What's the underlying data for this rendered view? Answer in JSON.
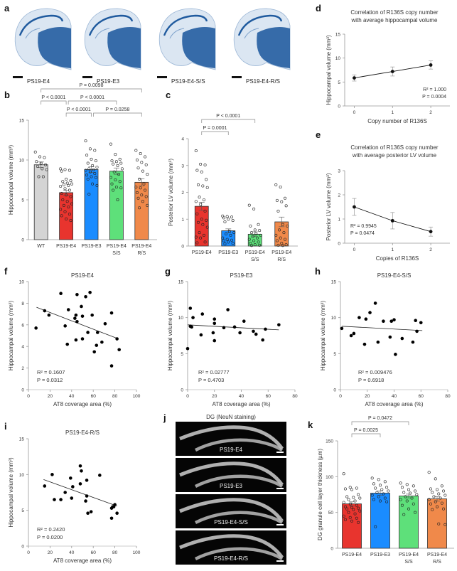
{
  "figure": {
    "panels": {
      "a": {
        "letter": "a",
        "images": [
          {
            "label": "PS19-E4",
            "stain_color": "#1f5a9e"
          },
          {
            "label": "PS19-E3",
            "stain_color": "#1f5a9e"
          },
          {
            "label": "PS19-E4-S/S",
            "stain_color": "#1f5a9e"
          },
          {
            "label": "PS19-E4-R/S",
            "stain_color": "#1f5a9e"
          }
        ]
      },
      "b": {
        "letter": "b"
      },
      "c": {
        "letter": "c"
      },
      "d": {
        "letter": "d",
        "title_line1": "Correlation of R136S copy number",
        "title_line2": "with average hippocampal volume"
      },
      "e": {
        "letter": "e",
        "title_line1": "Correlation of R136S copy number",
        "title_line2": "with average posterior LV volume"
      },
      "f": {
        "letter": "f"
      },
      "g": {
        "letter": "g"
      },
      "h": {
        "letter": "h"
      },
      "i": {
        "letter": "i"
      },
      "j": {
        "letter": "j",
        "title": "DG (NeuN staining)",
        "images": [
          {
            "label": "PS19-E4"
          },
          {
            "label": "PS19-E3"
          },
          {
            "label": "PS19-E4-S/S"
          },
          {
            "label": "PS19-E4-R/S"
          }
        ]
      },
      "k": {
        "letter": "k"
      }
    }
  },
  "chart_data": [
    {
      "id": "b",
      "type": "bar",
      "title": "",
      "xlabel": "",
      "ylabel": "Hippocampal volume (mm³)",
      "ylim": [
        0,
        15
      ],
      "yticks": [
        0,
        5,
        10,
        15
      ],
      "categories": [
        "WT",
        "PS19-E4",
        "PS19-E3",
        "PS19-E4\nS/S",
        "PS19-E4\nR/S"
      ],
      "category_lines": [
        [
          "WT"
        ],
        [
          "PS19-E4"
        ],
        [
          "PS19-E3"
        ],
        [
          "PS19-E4",
          "S/S"
        ],
        [
          "PS19-E4",
          "R/S"
        ]
      ],
      "colors": [
        "#d4d4d4",
        "#e8342e",
        "#1a8cff",
        "#5ee07a",
        "#f0894a"
      ],
      "values": [
        9.4,
        5.9,
        8.8,
        8.6,
        7.2
      ],
      "sem": [
        0.35,
        0.3,
        0.35,
        0.4,
        0.45
      ],
      "points": [
        [
          11.0,
          10.4,
          10.3,
          9.8,
          9.6,
          9.4,
          9.2,
          8.9,
          8.8,
          7.9,
          7.9
        ],
        [
          8.9,
          8.8,
          8.7,
          8.6,
          7.6,
          7.4,
          7.3,
          7.1,
          7.0,
          6.9,
          6.8,
          6.7,
          6.4,
          6.2,
          5.8,
          5.6,
          5.4,
          5.0,
          4.8,
          4.5,
          4.3,
          4.1,
          3.8,
          3.5,
          3.2,
          3.0,
          2.6,
          2.4
        ],
        [
          12.4,
          11.4,
          11.2,
          10.6,
          10.1,
          9.9,
          9.6,
          9.3,
          9.1,
          8.9,
          8.8,
          8.7,
          8.5,
          8.3,
          8.1,
          7.9,
          7.8,
          7.6,
          7.0,
          6.8,
          5.7
        ],
        [
          12.0,
          10.7,
          10.1,
          9.9,
          9.8,
          9.6,
          9.5,
          9.3,
          8.9,
          8.5,
          8.2,
          7.8,
          7.5,
          7.3,
          7.0,
          6.6,
          6.5,
          6.2,
          5.0
        ],
        [
          11.2,
          10.8,
          10.4,
          10.0,
          9.7,
          9.4,
          9.0,
          8.6,
          8.2,
          7.6,
          7.0,
          6.6,
          6.5,
          6.2,
          5.9,
          5.6,
          5.4,
          5.2,
          4.8,
          4.3,
          4.0
        ]
      ],
      "comparisons": [
        {
          "from": 0,
          "to": 4,
          "label": "P = 0.0098",
          "level": 3
        },
        {
          "from": 0,
          "to": 1,
          "label": "P < 0.0001",
          "level": 2
        },
        {
          "from": 1,
          "to": 3,
          "label": "P < 0.0001",
          "level": 2,
          "offset": true
        },
        {
          "from": 1,
          "to": 2,
          "label": "P < 0.0001",
          "level": 1
        },
        {
          "from": 2,
          "to": 4,
          "label": "P = 0.0258",
          "level": 1,
          "offset": true
        }
      ]
    },
    {
      "id": "c",
      "type": "bar",
      "title": "",
      "xlabel": "",
      "ylabel": "Posterior LV volume (mm³)",
      "ylim": [
        0,
        4
      ],
      "yticks": [
        0,
        1,
        2,
        3,
        4
      ],
      "categories": [
        "PS19-E4",
        "PS19-E3",
        "PS19-E4\nS/S",
        "PS19-E4\nR/S"
      ],
      "category_lines": [
        [
          "PS19-E4"
        ],
        [
          "PS19-E3"
        ],
        [
          "PS19-E4",
          "S/S"
        ],
        [
          "PS19-E4",
          "R/S"
        ]
      ],
      "colors": [
        "#e8342e",
        "#1a8cff",
        "#5ee07a",
        "#f0894a"
      ],
      "values": [
        1.48,
        0.57,
        0.44,
        0.9
      ],
      "sem": [
        0.15,
        0.07,
        0.09,
        0.18
      ],
      "points": [
        [
          3.55,
          3.05,
          3.02,
          2.82,
          2.76,
          2.48,
          2.28,
          2.24,
          2.18,
          1.82,
          1.72,
          1.66,
          1.55,
          1.3,
          1.2,
          1.0,
          0.96,
          0.88,
          0.8,
          0.7,
          0.5,
          0.4,
          0.33,
          0.3,
          0.15,
          0.12
        ],
        [
          1.12,
          1.1,
          1.08,
          1.05,
          1.0,
          0.95,
          0.9,
          0.55,
          0.5,
          0.45,
          0.4,
          0.3,
          0.25,
          0.22,
          0.2,
          0.15,
          0.1,
          0.08
        ],
        [
          1.52,
          1.38,
          0.8,
          0.75,
          0.6,
          0.58,
          0.5,
          0.45,
          0.4,
          0.35,
          0.3,
          0.25,
          0.2,
          0.15,
          0.1,
          0.05,
          0.03,
          0.02
        ],
        [
          2.28,
          2.2,
          1.78,
          1.7,
          1.65,
          1.5,
          1.3,
          0.8,
          0.75,
          0.6,
          0.5,
          0.4,
          0.3,
          0.25,
          0.2,
          0.1,
          0.05,
          0.03,
          0.02
        ]
      ],
      "comparisons": [
        {
          "from": 0,
          "to": 2,
          "label": "P < 0.0001",
          "level": 2
        },
        {
          "from": 0,
          "to": 1,
          "label": "P = 0.0001",
          "level": 1
        }
      ]
    },
    {
      "id": "d",
      "type": "line",
      "title": "Correlation of R136S copy number with average hippocampal volume",
      "xlabel": "Copy number of R136S",
      "ylabel": "Hippocampal volume (mm³)",
      "x": [
        0,
        1,
        2
      ],
      "y": [
        5.85,
        7.2,
        8.55
      ],
      "err": [
        0.65,
        0.95,
        0.85
      ],
      "xlim": [
        -0.25,
        2.5
      ],
      "ylim": [
        0,
        15
      ],
      "xticks": [
        0,
        1,
        2
      ],
      "yticks": [
        0,
        5,
        10,
        15
      ],
      "annotation": [
        "R² = 1.000",
        "P = 0.0004"
      ]
    },
    {
      "id": "e",
      "type": "line",
      "title": "Correlation of R136S copy number with average posterior LV volume",
      "xlabel": "Copies of R136S",
      "ylabel": "Posterior LV volume (mm³)",
      "x": [
        0,
        1,
        2
      ],
      "y": [
        1.5,
        0.93,
        0.48
      ],
      "err": [
        0.35,
        0.34,
        0.19
      ],
      "xlim": [
        -0.25,
        2.5
      ],
      "ylim": [
        0,
        3
      ],
      "xticks": [
        0,
        1,
        2
      ],
      "yticks": [
        0,
        1,
        2,
        3
      ],
      "annotation": [
        "R² = 0.9945",
        "P = 0.0474"
      ]
    },
    {
      "id": "f",
      "type": "scatter",
      "title": "PS19-E4",
      "xlabel": "AT8 coverage area (%)",
      "ylabel": "Hippocampal volume (mm³)",
      "xlim": [
        0,
        100
      ],
      "ylim": [
        0,
        10
      ],
      "xticks": [
        0,
        20,
        40,
        60,
        80,
        100
      ],
      "yticks": [
        0,
        2,
        4,
        6,
        8,
        10
      ],
      "x": [
        7,
        15,
        19,
        30,
        34,
        36,
        37,
        43,
        44,
        44,
        45,
        45,
        49,
        50,
        50,
        53,
        55,
        57,
        59,
        61,
        63,
        64,
        68,
        71,
        77,
        77,
        82,
        84
      ],
      "y": [
        5.7,
        7.3,
        6.9,
        8.9,
        5.9,
        4.2,
        7.4,
        6.6,
        4.6,
        6.9,
        8.8,
        6.3,
        7.7,
        6.8,
        4.7,
        8.6,
        5.3,
        9.0,
        6.9,
        3.5,
        4.1,
        5.3,
        4.4,
        6.1,
        7.1,
        2.2,
        4.7,
        3.7
      ],
      "fit": {
        "x": [
          7.5,
          82
        ],
        "y": [
          7.62,
          4.75
        ]
      },
      "annotation": [
        "R² = 0.1607",
        "P = 0.0312"
      ]
    },
    {
      "id": "g",
      "type": "scatter",
      "title": "PS19-E3",
      "xlabel": "AT8 coverage area (%)",
      "ylabel": "Hippocampal volume (mm³)",
      "xlim": [
        0,
        80
      ],
      "ylim": [
        0,
        15
      ],
      "xticks": [
        0,
        20,
        40,
        60,
        80
      ],
      "yticks": [
        0,
        5,
        10,
        15
      ],
      "x": [
        0,
        2,
        2,
        3,
        4,
        10,
        11,
        19,
        20,
        20,
        20,
        27,
        30,
        35,
        39,
        42,
        49,
        51,
        56,
        58,
        68
      ],
      "y": [
        5.7,
        11.3,
        8.8,
        8.7,
        10.0,
        7.6,
        10.5,
        7.9,
        6.8,
        9.8,
        9.2,
        8.6,
        11.1,
        8.7,
        7.9,
        9.5,
        8.1,
        7.7,
        6.9,
        8.4,
        9.0
      ],
      "fit": {
        "x": [
          0,
          68
        ],
        "y": [
          9.0,
          8.3
        ]
      },
      "annotation": [
        "R² = 0.02777",
        "P = 0.4703"
      ]
    },
    {
      "id": "h",
      "type": "scatter",
      "title": "PS19-E4-S/S",
      "xlabel": "AT8 coverage area (%)",
      "ylabel": "Hippocampal volume (mm³)",
      "xlim": [
        0,
        80
      ],
      "ylim": [
        0,
        15
      ],
      "xticks": [
        0,
        20,
        40,
        60,
        80
      ],
      "yticks": [
        0,
        5,
        10,
        15
      ],
      "x": [
        1,
        8,
        10,
        14,
        18,
        19,
        22,
        26,
        28,
        32,
        37,
        38,
        40,
        41,
        46,
        54,
        56,
        57,
        60
      ],
      "y": [
        8.5,
        7.5,
        7.8,
        10.0,
        6.3,
        9.8,
        10.7,
        12.0,
        6.6,
        9.5,
        7.3,
        9.5,
        9.7,
        4.9,
        7.1,
        6.6,
        9.6,
        8.1,
        9.3
      ],
      "fit": {
        "x": [
          1,
          61
        ],
        "y": [
          8.8,
          8.2
        ]
      },
      "annotation": [
        "R² = 0.009476",
        "P = 0.6918"
      ]
    },
    {
      "id": "i",
      "type": "scatter",
      "title": "PS19-E4-R/S",
      "xlabel": "AT8 coverage area (%)",
      "ylabel": "Hippocampal volume (mm³)",
      "xlim": [
        0,
        100
      ],
      "ylim": [
        0,
        15
      ],
      "xticks": [
        0,
        20,
        40,
        60,
        80,
        100
      ],
      "yticks": [
        0,
        5,
        10,
        15
      ],
      "x": [
        15,
        22,
        24,
        30,
        34,
        39,
        40,
        41,
        48,
        48,
        49,
        53,
        54,
        54,
        55,
        58,
        66,
        77,
        77,
        78,
        79,
        80,
        82
      ],
      "y": [
        8.4,
        10.0,
        6.5,
        6.5,
        7.5,
        9.5,
        6.7,
        8.3,
        11.2,
        8.7,
        10.5,
        6.3,
        7.0,
        9.2,
        4.6,
        4.8,
        9.9,
        3.9,
        5.3,
        5.5,
        5.5,
        5.8,
        4.6
      ],
      "fit": {
        "x": [
          14,
          82
        ],
        "y": [
          9.3,
          5.6
        ]
      },
      "annotation": [
        "R² = 0.2420",
        "P = 0.0200"
      ]
    },
    {
      "id": "k",
      "type": "bar",
      "title": "",
      "xlabel": "",
      "ylabel": "DG granule cell layer thickness (µm)",
      "ylim": [
        0,
        150
      ],
      "yticks": [
        0,
        50,
        100,
        150
      ],
      "categories": [
        "PS19-E4",
        "PS19-E3",
        "PS19-E4\nS/S",
        "PS19-E4\nR/S"
      ],
      "category_lines": [
        [
          "PS19-E4"
        ],
        [
          "PS19-E3"
        ],
        [
          "PS19-E4",
          "S/S"
        ],
        [
          "PS19-E4",
          "R/S"
        ]
      ],
      "colors": [
        "#e8342e",
        "#1a8cff",
        "#5ee07a",
        "#f0894a"
      ],
      "values": [
        62,
        77,
        73,
        69
      ],
      "sem": [
        2.8,
        3.2,
        2.6,
        3.3
      ],
      "points": [
        [
          104,
          85,
          84,
          83,
          82,
          75,
          72,
          71,
          70,
          68,
          66,
          64,
          62,
          60,
          58,
          57,
          56,
          55,
          54,
          52,
          50,
          48,
          45,
          43,
          42,
          40,
          38,
          36
        ],
        [
          98,
          96,
          93,
          90,
          88,
          85,
          84,
          82,
          80,
          78,
          76,
          74,
          72,
          70,
          68,
          66,
          65,
          30
        ],
        [
          91,
          89,
          87,
          85,
          82,
          80,
          78,
          77,
          75,
          72,
          70,
          68,
          66,
          62,
          60,
          55,
          50,
          47
        ],
        [
          106,
          97,
          87,
          83,
          82,
          80,
          78,
          76,
          74,
          72,
          70,
          68,
          65,
          63,
          62,
          58,
          55,
          54,
          34,
          33
        ]
      ],
      "comparisons": [
        {
          "from": 0,
          "to": 2,
          "label": "P = 0.0472",
          "level": 2
        },
        {
          "from": 0,
          "to": 1,
          "label": "P = 0.0025",
          "level": 1
        }
      ]
    }
  ]
}
